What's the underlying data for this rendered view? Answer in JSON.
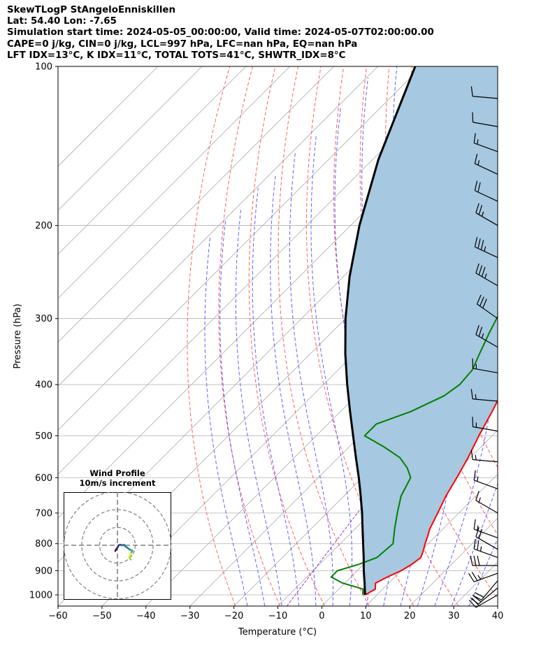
{
  "header": {
    "line1": "SkewTLogP StAngeloEnniskillen",
    "line2": "Lat: 54.40   Lon: -7.65",
    "line3": "Simulation start time: 2024-05-05_00:00:00, Valid time: 2024-05-07T02:00:00.00",
    "line4": "CAPE=0 j/kg, CIN=0 j/kg, LCL=997 hPa, LFC=nan hPa, EQ=nan hPa",
    "line5": "LFT IDX=13$^\\circ$C, K IDX=11$^\\circ$C, TOTAL TOTS=41$^\\circ$C, SHWTR_IDX=8$^\\circ$C"
  },
  "chart_data": {
    "type": "line",
    "subtype": "skew-T log-P diagram",
    "xlabel": "Temperature ($^\\circ$C)",
    "ylabel": "Pressure (hPa)",
    "xlim": [
      -60,
      40
    ],
    "ylim": [
      1050,
      100
    ],
    "y_scale": "log",
    "x_ticks": [
      -60,
      -50,
      -40,
      -30,
      -20,
      -10,
      0,
      10,
      20,
      30,
      40
    ],
    "y_ticks": [
      1000,
      900,
      800,
      700,
      600,
      500,
      400,
      300,
      200,
      100
    ],
    "grid": true,
    "colors": {
      "temperature": "#ff0000",
      "dewpoint": "#008000",
      "parcel": "#000000",
      "cape_fill": "#a6c8e0",
      "dry_adiabats": "#ff6060",
      "moist_adiabats": "#6060ff",
      "mixing_ratio": "#9933cc",
      "isotherms": "#aaaaaa",
      "barbs": "#000000"
    },
    "series": [
      {
        "key": "temperature",
        "points": [
          [
            1000,
            7.3
          ],
          [
            975,
            8.3
          ],
          [
            950,
            7.0
          ],
          [
            925,
            8.3
          ],
          [
            900,
            10.0
          ],
          [
            875,
            11.0
          ],
          [
            850,
            11.5
          ],
          [
            825,
            10.5
          ],
          [
            800,
            9.3
          ],
          [
            775,
            8.2
          ],
          [
            750,
            7.0
          ],
          [
            700,
            5.2
          ],
          [
            650,
            3.2
          ],
          [
            600,
            1.5
          ],
          [
            550,
            -0.5
          ],
          [
            500,
            -3.0
          ],
          [
            450,
            -5.5
          ],
          [
            400,
            -8.5
          ],
          [
            350,
            -13.5
          ],
          [
            300,
            -19.5
          ],
          [
            250,
            -26.0
          ],
          [
            225,
            -30.0
          ],
          [
            210,
            -31.0
          ],
          [
            200,
            -32.0
          ],
          [
            180,
            -34.0
          ],
          [
            170,
            -35.0
          ],
          [
            160,
            -35.0
          ],
          [
            150,
            -35.5
          ],
          [
            140,
            -35.0
          ],
          [
            130,
            -32.0
          ],
          [
            120,
            -30.0
          ],
          [
            110,
            -30.0
          ],
          [
            100,
            -30.0
          ]
        ]
      },
      {
        "key": "dewpoint",
        "points": [
          [
            1000,
            6.8
          ],
          [
            975,
            5.5
          ],
          [
            950,
            -0.5
          ],
          [
            925,
            -4.5
          ],
          [
            900,
            -4.5
          ],
          [
            875,
            -1.0
          ],
          [
            850,
            1.5
          ],
          [
            800,
            2.0
          ],
          [
            750,
            -1.0
          ],
          [
            700,
            -4.0
          ],
          [
            650,
            -7.0
          ],
          [
            600,
            -9.0
          ],
          [
            575,
            -12.0
          ],
          [
            550,
            -16.0
          ],
          [
            525,
            -22.0
          ],
          [
            500,
            -29.0
          ],
          [
            475,
            -29.0
          ],
          [
            450,
            -24.0
          ],
          [
            420,
            -20.0
          ],
          [
            400,
            -19.0
          ],
          [
            375,
            -19.5
          ],
          [
            350,
            -21.5
          ],
          [
            320,
            -24.0
          ],
          [
            290,
            -26.5
          ],
          [
            260,
            -30.0
          ],
          [
            240,
            -32.5
          ],
          [
            220,
            -33.0
          ],
          [
            200,
            -35.0
          ],
          [
            180,
            -40.0
          ],
          [
            170,
            -49.0
          ],
          [
            160,
            -47.0
          ],
          [
            140,
            -46.0
          ],
          [
            120,
            -45.0
          ],
          [
            100,
            -45.5
          ]
        ]
      },
      {
        "key": "parcel",
        "points": [
          [
            1000,
            7.3
          ],
          [
            997,
            7.1
          ],
          [
            950,
            4.5
          ],
          [
            900,
            1.5
          ],
          [
            850,
            -1.5
          ],
          [
            800,
            -4.8
          ],
          [
            750,
            -8.3
          ],
          [
            700,
            -12.0
          ],
          [
            650,
            -16.2
          ],
          [
            600,
            -20.8
          ],
          [
            550,
            -26.0
          ],
          [
            500,
            -31.6
          ],
          [
            450,
            -37.8
          ],
          [
            400,
            -44.6
          ],
          [
            350,
            -52.0
          ],
          [
            300,
            -60.0
          ],
          [
            250,
            -68.6
          ],
          [
            200,
            -78.0
          ],
          [
            150,
            -88.7
          ],
          [
            100,
            -101.5
          ]
        ]
      }
    ],
    "dry_adiabats_theta_K": [
      250,
      260,
      270,
      280,
      290,
      300,
      310,
      320,
      330,
      340,
      350,
      360,
      370,
      380,
      390,
      400,
      410,
      420,
      430,
      440,
      450
    ],
    "moist_adiabats_thetaw_C": [
      -20,
      -16,
      -12,
      -8,
      -4,
      0,
      4,
      8,
      12,
      16,
      20,
      24,
      28,
      32
    ],
    "mixing_ratio_g_kg": [
      0.002
    ],
    "wind_barbs": [
      {
        "p": 1000,
        "speed_kt": 18,
        "dir": 240
      },
      {
        "p": 970,
        "speed_kt": 20,
        "dir": 230
      },
      {
        "p": 940,
        "speed_kt": 22,
        "dir": 220
      },
      {
        "p": 910,
        "speed_kt": 25,
        "dir": 250
      },
      {
        "p": 880,
        "speed_kt": 30,
        "dir": 270
      },
      {
        "p": 850,
        "speed_kt": 25,
        "dir": 290
      },
      {
        "p": 820,
        "speed_kt": 20,
        "dir": 300
      },
      {
        "p": 780,
        "speed_kt": 15,
        "dir": 290
      },
      {
        "p": 700,
        "speed_kt": 15,
        "dir": 300
      },
      {
        "p": 630,
        "speed_kt": 15,
        "dir": 290
      },
      {
        "p": 560,
        "speed_kt": 15,
        "dir": 275
      },
      {
        "p": 490,
        "speed_kt": 15,
        "dir": 280
      },
      {
        "p": 430,
        "speed_kt": 15,
        "dir": 275
      },
      {
        "p": 380,
        "speed_kt": 15,
        "dir": 280
      },
      {
        "p": 340,
        "speed_kt": 25,
        "dir": 300
      },
      {
        "p": 300,
        "speed_kt": 30,
        "dir": 305
      },
      {
        "p": 260,
        "speed_kt": 35,
        "dir": 300
      },
      {
        "p": 230,
        "speed_kt": 35,
        "dir": 295
      },
      {
        "p": 200,
        "speed_kt": 25,
        "dir": 300
      },
      {
        "p": 180,
        "speed_kt": 20,
        "dir": 295
      },
      {
        "p": 160,
        "speed_kt": 15,
        "dir": 295
      },
      {
        "p": 145,
        "speed_kt": 15,
        "dir": 290
      },
      {
        "p": 130,
        "speed_kt": 10,
        "dir": 280
      },
      {
        "p": 115,
        "speed_kt": 10,
        "dir": 275
      }
    ]
  },
  "hodograph": {
    "title": "Wind Profile",
    "subtitle": "10m/s increment",
    "ring_increment_ms": 10,
    "rings": [
      10,
      20,
      30
    ],
    "colormap": "viridis",
    "points_uv_ms": [
      [
        -1.2,
        -3.2
      ],
      [
        -0.8,
        -2.4
      ],
      [
        -0.2,
        -1.6
      ],
      [
        0.2,
        -1.0
      ],
      [
        0.8,
        0.1
      ],
      [
        1.6,
        0.3
      ],
      [
        2.6,
        0.0
      ],
      [
        3.8,
        0.2
      ],
      [
        4.4,
        -0.6
      ],
      [
        5.6,
        -1.4
      ],
      [
        6.8,
        -2.4
      ],
      [
        7.4,
        -2.6
      ],
      [
        8.4,
        -3.0
      ],
      [
        7.8,
        -4.2
      ],
      [
        7.4,
        -5.8
      ],
      [
        7.0,
        -7.0
      ],
      [
        7.4,
        -8.0
      ],
      [
        7.0,
        -7.4
      ],
      [
        6.6,
        -6.6
      ],
      [
        7.0,
        -5.8
      ],
      [
        7.6,
        -4.6
      ]
    ]
  }
}
